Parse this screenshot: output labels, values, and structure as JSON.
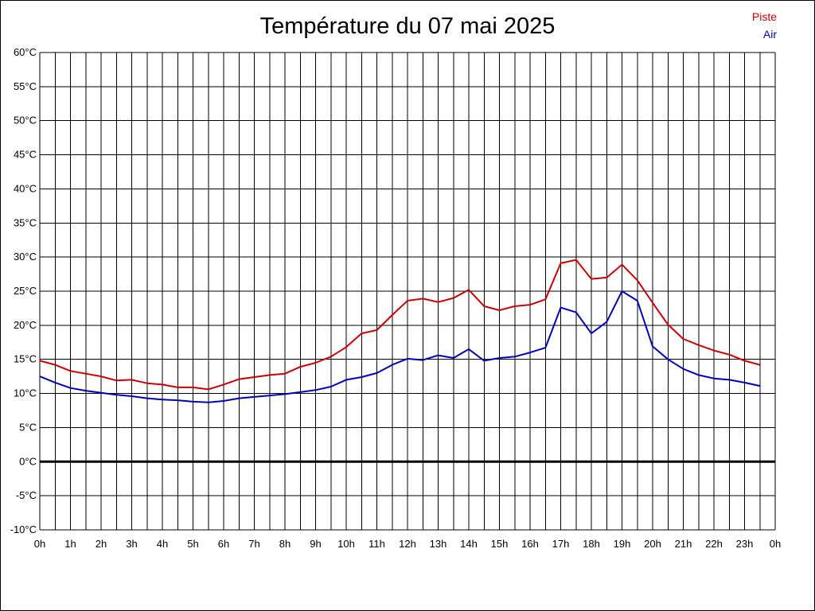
{
  "chart_data": {
    "type": "line",
    "title": "Température du 07 mai 2025",
    "xlabel": "",
    "ylabel": "",
    "x_ticks": [
      "0h",
      "1h",
      "2h",
      "3h",
      "4h",
      "5h",
      "6h",
      "7h",
      "8h",
      "9h",
      "10h",
      "11h",
      "12h",
      "13h",
      "14h",
      "15h",
      "16h",
      "17h",
      "18h",
      "19h",
      "20h",
      "21h",
      "22h",
      "23h",
      "0h"
    ],
    "y_ticks": [
      "60°C",
      "55°C",
      "50°C",
      "45°C",
      "40°C",
      "35°C",
      "30°C",
      "25°C",
      "20°C",
      "15°C",
      "10°C",
      "5°C",
      "0°C",
      "-5°C",
      "-10°C"
    ],
    "xlim": [
      0,
      24
    ],
    "ylim": [
      -10,
      60
    ],
    "grid": true,
    "legend_position": "top-right",
    "x": [
      0,
      0.5,
      1,
      1.5,
      2,
      2.5,
      3,
      3.5,
      4,
      4.5,
      5,
      5.5,
      6,
      6.5,
      7,
      7.5,
      8,
      8.5,
      9,
      9.5,
      10,
      10.5,
      11,
      11.5,
      12,
      12.5,
      13,
      13.5,
      14,
      14.5,
      15,
      15.5,
      16,
      16.5,
      17,
      17.5,
      18,
      18.5,
      19,
      19.5,
      20,
      20.5,
      21,
      21.5,
      22,
      22.5,
      23,
      23.5
    ],
    "series": [
      {
        "name": "Piste",
        "color": "#cc0000",
        "values": [
          14.8,
          14.2,
          13.3,
          12.9,
          12.5,
          11.9,
          12.0,
          11.5,
          11.3,
          10.9,
          10.9,
          10.6,
          11.3,
          12.1,
          12.4,
          12.7,
          12.9,
          13.9,
          14.5,
          15.4,
          16.8,
          18.8,
          19.3,
          21.5,
          23.6,
          23.9,
          23.4,
          24.0,
          25.2,
          22.8,
          22.2,
          22.8,
          23.0,
          23.8,
          29.1,
          29.6,
          26.8,
          27.0,
          28.9,
          26.6,
          23.3,
          20.1,
          18.0,
          17.1,
          16.3,
          15.7,
          14.8,
          14.2
        ]
      },
      {
        "name": "Air",
        "color": "#0000bb",
        "values": [
          12.5,
          11.6,
          10.8,
          10.4,
          10.1,
          9.8,
          9.6,
          9.3,
          9.1,
          9.0,
          8.8,
          8.7,
          8.9,
          9.3,
          9.5,
          9.7,
          9.9,
          10.2,
          10.5,
          11.0,
          12.0,
          12.4,
          13.0,
          14.2,
          15.1,
          14.9,
          15.6,
          15.2,
          16.5,
          14.8,
          15.2,
          15.4,
          16.0,
          16.7,
          22.6,
          21.9,
          18.8,
          20.5,
          25.0,
          23.6,
          16.9,
          15.0,
          13.6,
          12.7,
          12.2,
          12.0,
          11.6,
          11.1
        ]
      }
    ]
  }
}
